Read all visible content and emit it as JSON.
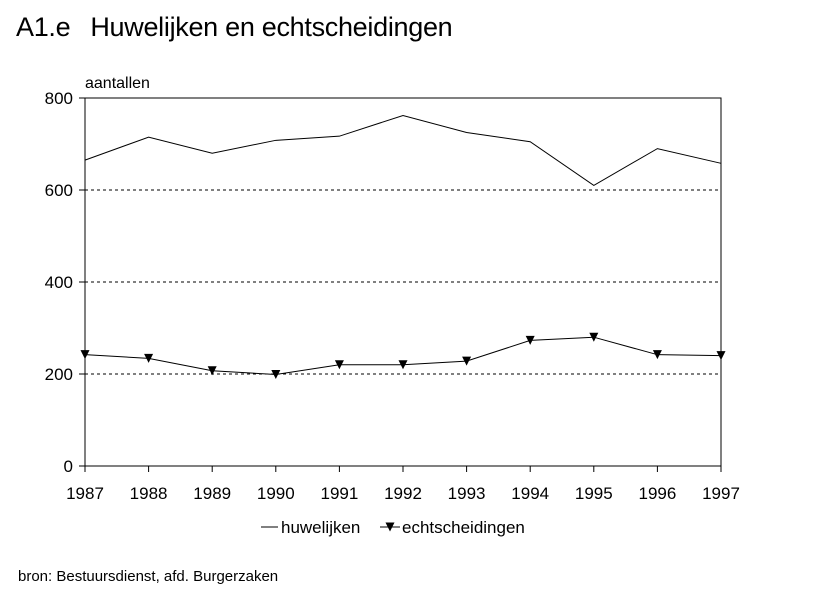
{
  "header": {
    "number": "A1.e",
    "title": "Huwelijken en echtscheidingen"
  },
  "footer": {
    "source": "bron: Bestuursdienst, afd. Burgerzaken"
  },
  "chart_data": {
    "type": "line",
    "title": "Huwelijken en echtscheidingen",
    "xlabel": "",
    "ylabel": "aantallen",
    "categories": [
      "1987",
      "1988",
      "1989",
      "1990",
      "1991",
      "1992",
      "1993",
      "1994",
      "1995",
      "1996",
      "1997"
    ],
    "ylim": [
      0,
      800
    ],
    "yticks": [
      0,
      200,
      400,
      600,
      800
    ],
    "ytick_labels": [
      "0",
      "200",
      "400",
      "600",
      "800"
    ],
    "grid": "horizontal-dashed",
    "legend_position": "bottom",
    "series": [
      {
        "name": "huwelijken",
        "marker": "none",
        "values": [
          665,
          715,
          680,
          708,
          717,
          762,
          725,
          705,
          610,
          690,
          658
        ]
      },
      {
        "name": "echtscheidingen",
        "marker": "triangle-down",
        "values": [
          242,
          234,
          207,
          199,
          220,
          220,
          228,
          273,
          280,
          242,
          240
        ]
      }
    ]
  }
}
